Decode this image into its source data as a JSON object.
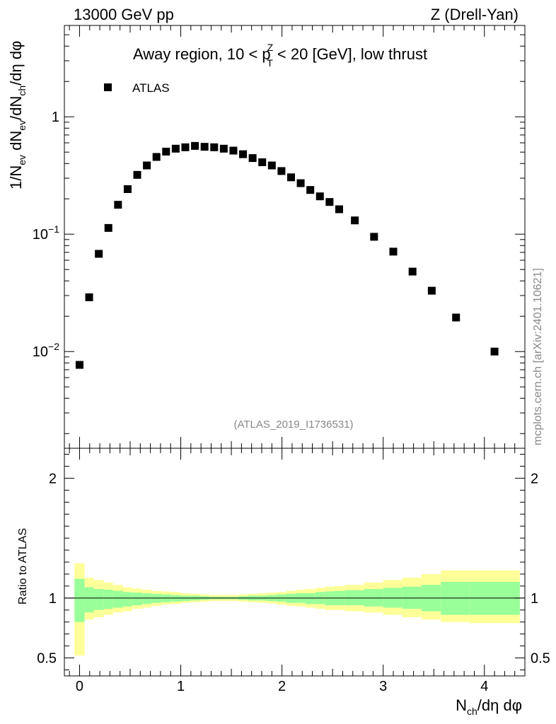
{
  "header": {
    "energy": "13000 GeV pp",
    "process": "Z (Drell-Yan)"
  },
  "side_label": "mcplots.cern.ch [arXiv:2401.10621]",
  "colors": {
    "marker": "#000000",
    "band_inner": "#99ff99",
    "band_outer": "#ffff99",
    "frame": "#000000",
    "watermark": "#888888"
  },
  "chart_data": [
    {
      "type": "scatter",
      "title": "Away region, 10 < pTZ < 20 [GeV], low thrust",
      "title_parts": {
        "pre": "Away region, 10 < p",
        "sup": "Z",
        "sub": "T",
        "post": " < 20 [GeV], low thrust"
      },
      "ylabel": "1/Nev dNev/dNch/dη dφ",
      "ylabel_parts": [
        "1/N",
        "ev",
        " dN",
        "ev",
        "/dN",
        "ch",
        "/dη dφ"
      ],
      "yscale": "log",
      "ylim": [
        0.0015,
        6
      ],
      "xlim": [
        -0.15,
        4.4
      ],
      "legend": {
        "label": "ATLAS",
        "position": "top-left"
      },
      "watermark": "(ATLAS_2019_I1736531)",
      "yticks": [
        {
          "value": 1,
          "base": "1",
          "exp": ""
        },
        {
          "value": 0.1,
          "base": "10",
          "exp": "−1"
        },
        {
          "value": 0.01,
          "base": "10",
          "exp": "−2"
        }
      ],
      "series": [
        {
          "name": "ATLAS",
          "x": [
            0,
            0.095,
            0.19,
            0.285,
            0.38,
            0.475,
            0.57,
            0.665,
            0.76,
            0.855,
            0.95,
            1.045,
            1.14,
            1.235,
            1.33,
            1.425,
            1.52,
            1.615,
            1.71,
            1.805,
            1.9,
            1.995,
            2.09,
            2.185,
            2.28,
            2.375,
            2.47,
            2.565,
            2.72,
            2.91,
            3.1,
            3.29,
            3.48,
            3.72,
            4.1
          ],
          "y": [
            0.0077,
            0.029,
            0.068,
            0.113,
            0.178,
            0.242,
            0.32,
            0.385,
            0.455,
            0.505,
            0.535,
            0.55,
            0.565,
            0.555,
            0.55,
            0.535,
            0.515,
            0.48,
            0.445,
            0.41,
            0.385,
            0.345,
            0.305,
            0.272,
            0.238,
            0.21,
            0.188,
            0.163,
            0.131,
            0.095,
            0.071,
            0.048,
            0.033,
            0.0195,
            0.01
          ]
        }
      ]
    },
    {
      "type": "area",
      "ylabel": "Ratio to ATLAS",
      "xlabel": "Nch/dη dφ",
      "xlabel_parts": [
        "N",
        "ch",
        "/dη dφ"
      ],
      "ylim": [
        0.35,
        2.25
      ],
      "xlim": [
        -0.15,
        4.4
      ],
      "reference_line": 1,
      "yticks": [
        {
          "value": 2,
          "label": "2"
        },
        {
          "value": 1,
          "label": "1"
        },
        {
          "value": 0.5,
          "label": "0.5"
        }
      ],
      "xticks": [
        {
          "value": 0,
          "label": "0"
        },
        {
          "value": 1,
          "label": "1"
        },
        {
          "value": 2,
          "label": "2"
        },
        {
          "value": 3,
          "label": "3"
        },
        {
          "value": 4,
          "label": "4"
        }
      ],
      "bands": {
        "bin_edges": [
          -0.05,
          0.05,
          0.14,
          0.24,
          0.33,
          0.43,
          0.52,
          0.62,
          0.71,
          0.81,
          0.9,
          1.0,
          1.09,
          1.19,
          1.28,
          1.38,
          1.47,
          1.57,
          1.66,
          1.76,
          1.85,
          1.95,
          2.04,
          2.14,
          2.23,
          2.33,
          2.42,
          2.52,
          2.62,
          2.81,
          3.0,
          3.19,
          3.38,
          3.57,
          3.85,
          4.35
        ],
        "inner_low": [
          0.8,
          0.88,
          0.9,
          0.91,
          0.92,
          0.93,
          0.94,
          0.95,
          0.96,
          0.965,
          0.97,
          0.975,
          0.98,
          0.985,
          0.99,
          0.99,
          0.99,
          0.985,
          0.98,
          0.98,
          0.975,
          0.97,
          0.96,
          0.96,
          0.95,
          0.95,
          0.94,
          0.94,
          0.94,
          0.93,
          0.92,
          0.91,
          0.89,
          0.86,
          0.86
        ],
        "inner_high": [
          1.16,
          1.09,
          1.075,
          1.07,
          1.06,
          1.05,
          1.045,
          1.04,
          1.035,
          1.03,
          1.025,
          1.02,
          1.02,
          1.015,
          1.01,
          1.01,
          1.01,
          1.015,
          1.02,
          1.02,
          1.025,
          1.03,
          1.035,
          1.04,
          1.04,
          1.05,
          1.055,
          1.06,
          1.065,
          1.075,
          1.085,
          1.095,
          1.11,
          1.135,
          1.135
        ],
        "outer_low": [
          0.52,
          0.82,
          0.84,
          0.86,
          0.88,
          0.89,
          0.91,
          0.92,
          0.935,
          0.945,
          0.95,
          0.96,
          0.965,
          0.97,
          0.975,
          0.975,
          0.975,
          0.97,
          0.965,
          0.96,
          0.955,
          0.945,
          0.935,
          0.93,
          0.92,
          0.91,
          0.9,
          0.9,
          0.89,
          0.88,
          0.86,
          0.84,
          0.82,
          0.8,
          0.79
        ],
        "outer_high": [
          1.29,
          1.17,
          1.15,
          1.13,
          1.11,
          1.09,
          1.08,
          1.07,
          1.06,
          1.055,
          1.05,
          1.04,
          1.035,
          1.03,
          1.025,
          1.025,
          1.025,
          1.03,
          1.035,
          1.04,
          1.045,
          1.05,
          1.06,
          1.07,
          1.075,
          1.085,
          1.095,
          1.1,
          1.11,
          1.13,
          1.15,
          1.17,
          1.2,
          1.23,
          1.23
        ]
      }
    }
  ]
}
